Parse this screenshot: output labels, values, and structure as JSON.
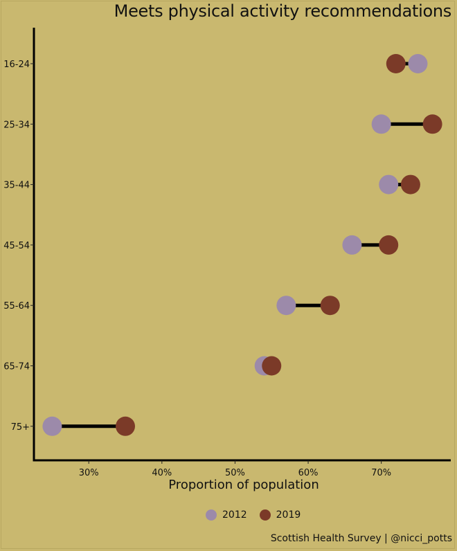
{
  "chart_data": {
    "type": "dumbbell",
    "title": "Meets physical activity recommendations",
    "xlabel": "Proportion of population",
    "ylabel": "",
    "xlim": [
      22.5,
      79.5
    ],
    "x_ticks": [
      30,
      40,
      50,
      60,
      70
    ],
    "x_tick_labels": [
      "30%",
      "40%",
      "50%",
      "60%",
      "70%"
    ],
    "categories": [
      "16-24",
      "25-34",
      "35-44",
      "45-54",
      "55-64",
      "65-74",
      "75+"
    ],
    "series": [
      {
        "name": "2012",
        "color": "#9c8aaa",
        "values": [
          75,
          70,
          71,
          66,
          57,
          54,
          25
        ]
      },
      {
        "name": "2019",
        "color": "#7b3a28",
        "values": [
          72,
          77,
          74,
          71,
          63,
          55,
          35
        ]
      }
    ],
    "legend_position": "bottom",
    "grid": false
  },
  "caption": "Scottish Health Survey | @nicci_potts"
}
